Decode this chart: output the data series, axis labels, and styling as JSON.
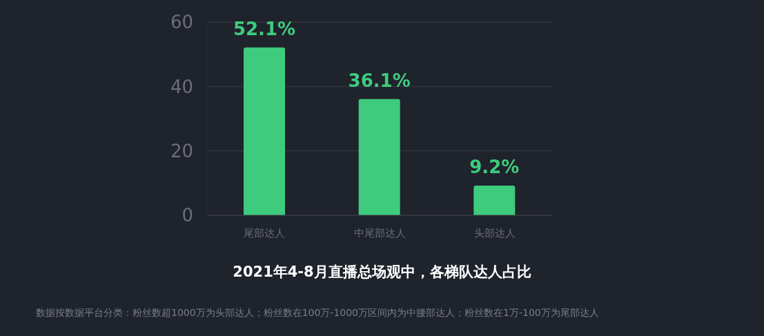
{
  "chart_data": {
    "type": "bar",
    "title": "2021年4-8月直播总场观中，各梯队达人占比",
    "categories": [
      "尾部达人",
      "中尾部达人",
      "头部达人"
    ],
    "values": [
      52.1,
      36.1,
      9.2
    ],
    "color": "#3ecb7e",
    "value_labels": [
      "52.1%",
      "36.1%",
      "9.2%"
    ],
    "ylim": [
      0,
      60
    ],
    "yticks": [
      0,
      20,
      40,
      60
    ],
    "grid": "y",
    "annotations": [
      "数据按数据平台分类：粉丝数超1000万为头部达人；粉丝数在100万-1000万区间内为中腰部达人；粉丝数在1万-100万为尾部达人"
    ]
  }
}
